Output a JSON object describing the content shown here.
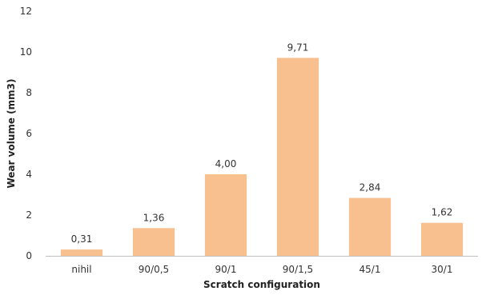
{
  "chart_data": {
    "type": "bar",
    "categories": [
      "nihil",
      "90/0,5",
      "90/1",
      "90/1,5",
      "45/1",
      "30/1"
    ],
    "values": [
      0.31,
      1.36,
      4.0,
      9.71,
      2.84,
      1.62
    ],
    "data_labels": [
      "0,31",
      "1,36",
      "4,00",
      "9,71",
      "2,84",
      "1,62"
    ],
    "xlabel": "Scratch configuration",
    "ylabel": "Wear volume (mm3)",
    "ylim": [
      0,
      12
    ],
    "yticks": [
      0,
      2,
      4,
      6,
      8,
      10,
      12
    ],
    "grid": false,
    "colors": {
      "bar": "#f8c08e",
      "axis": "#bfbfbf"
    }
  }
}
